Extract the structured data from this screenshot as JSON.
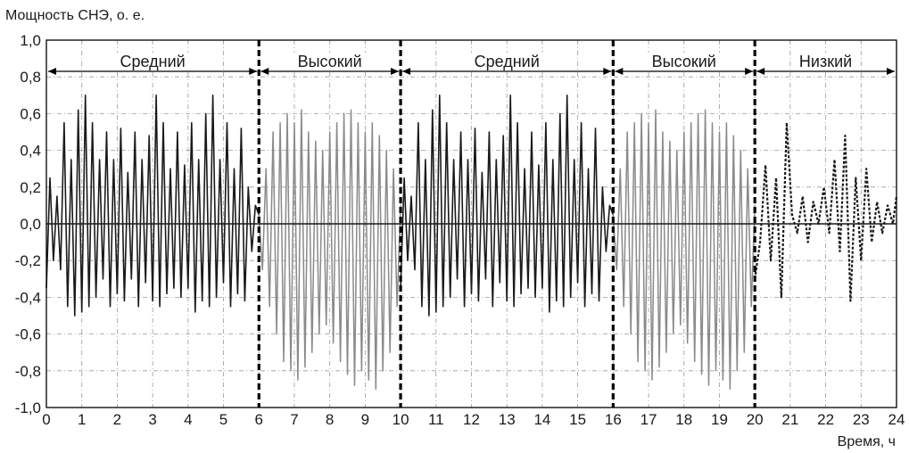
{
  "chart_data": {
    "type": "line",
    "title": "",
    "ylabel": "Мощность СНЭ, о. е.",
    "xlabel": "Время, ч",
    "xlim": [
      0,
      24
    ],
    "ylim": [
      -1.0,
      1.0
    ],
    "grid": true,
    "x_ticks": [
      0,
      1,
      2,
      3,
      4,
      5,
      6,
      7,
      8,
      9,
      10,
      11,
      12,
      13,
      14,
      15,
      16,
      17,
      18,
      19,
      20,
      21,
      22,
      23,
      24
    ],
    "y_ticks": [
      {
        "value": 1.0,
        "label": "1,0"
      },
      {
        "value": 0.8,
        "label": "0,8"
      },
      {
        "value": 0.6,
        "label": "0,6"
      },
      {
        "value": 0.4,
        "label": "0,4"
      },
      {
        "value": 0.2,
        "label": "0,2"
      },
      {
        "value": 0.0,
        "label": "0,0"
      },
      {
        "value": -0.2,
        "label": "-0,2"
      },
      {
        "value": -0.4,
        "label": "-0,4"
      },
      {
        "value": -0.6,
        "label": "-0,6"
      },
      {
        "value": -0.8,
        "label": "-0,8"
      },
      {
        "value": -1.0,
        "label": "-1,0"
      }
    ],
    "dividers": [
      6,
      10,
      16,
      20
    ],
    "span_level": 0.83,
    "modes": [
      {
        "label": "Средний",
        "start": 0,
        "end": 6,
        "style": "black"
      },
      {
        "label": "Высокий",
        "start": 6,
        "end": 10,
        "style": "gray"
      },
      {
        "label": "Средний",
        "start": 10,
        "end": 16,
        "style": "black"
      },
      {
        "label": "Высокий",
        "start": 16,
        "end": 20,
        "style": "gray"
      },
      {
        "label": "Низкий",
        "start": 20,
        "end": 24,
        "style": "dotted"
      }
    ],
    "series": [
      {
        "x": [
          0,
          0.1,
          0.2,
          0.3,
          0.4,
          0.5,
          0.6,
          0.7,
          0.8,
          0.9,
          1.0,
          1.1,
          1.2,
          1.3,
          1.4,
          1.5,
          1.6,
          1.7,
          1.8,
          1.9,
          2.0,
          2.1,
          2.2,
          2.3,
          2.4,
          2.5,
          2.6,
          2.7,
          2.8,
          2.9,
          3.0,
          3.1,
          3.2,
          3.3,
          3.4,
          3.5,
          3.6,
          3.7,
          3.8,
          3.9,
          4.0,
          4.1,
          4.2,
          4.3,
          4.4,
          4.5,
          4.6,
          4.7,
          4.8,
          4.9,
          5.0,
          5.1,
          5.2,
          5.3,
          5.4,
          5.5,
          5.6,
          5.7,
          5.8,
          5.9,
          6.0
        ],
        "y": [
          -0.35,
          0.25,
          -0.2,
          0.15,
          -0.25,
          0.55,
          -0.45,
          0.35,
          -0.5,
          0.62,
          -0.48,
          0.7,
          -0.45,
          0.55,
          -0.4,
          0.35,
          -0.3,
          0.5,
          -0.45,
          0.35,
          -0.38,
          0.52,
          -0.42,
          0.28,
          -0.3,
          0.5,
          -0.45,
          0.35,
          -0.32,
          0.48,
          -0.42,
          0.7,
          -0.45,
          0.55,
          -0.38,
          0.3,
          -0.35,
          0.5,
          -0.4,
          0.32,
          -0.35,
          0.55,
          -0.48,
          0.35,
          -0.42,
          0.6,
          -0.45,
          0.7,
          -0.4,
          0.35,
          -0.32,
          0.55,
          -0.45,
          0.3,
          -0.38,
          0.52,
          -0.42,
          0.2,
          -0.15,
          0.1,
          0.05
        ]
      },
      {
        "x": [
          6.0,
          6.1,
          6.2,
          6.3,
          6.4,
          6.5,
          6.6,
          6.7,
          6.8,
          6.9,
          7.0,
          7.1,
          7.2,
          7.3,
          7.4,
          7.5,
          7.6,
          7.7,
          7.8,
          7.9,
          8.0,
          8.1,
          8.2,
          8.3,
          8.4,
          8.5,
          8.6,
          8.7,
          8.8,
          8.9,
          9.0,
          9.1,
          9.2,
          9.3,
          9.4,
          9.5,
          9.6,
          9.7,
          9.8,
          9.9,
          10.0
        ],
        "y": [
          0.05,
          -0.25,
          0.3,
          -0.45,
          0.5,
          -0.6,
          0.55,
          -0.75,
          0.6,
          -0.8,
          0.55,
          -0.85,
          0.62,
          -0.78,
          0.5,
          -0.7,
          0.45,
          -0.6,
          0.4,
          -0.55,
          0.5,
          -0.65,
          0.55,
          -0.75,
          0.6,
          -0.82,
          0.62,
          -0.88,
          0.55,
          -0.8,
          0.5,
          -0.85,
          0.55,
          -0.9,
          0.48,
          -0.8,
          0.4,
          -0.7,
          0.3,
          -0.45,
          0.1
        ]
      },
      {
        "x": [
          10.0,
          10.1,
          10.2,
          10.3,
          10.4,
          10.5,
          10.6,
          10.7,
          10.8,
          10.9,
          11.0,
          11.1,
          11.2,
          11.3,
          11.4,
          11.5,
          11.6,
          11.7,
          11.8,
          11.9,
          12.0,
          12.1,
          12.2,
          12.3,
          12.4,
          12.5,
          12.6,
          12.7,
          12.8,
          12.9,
          13.0,
          13.1,
          13.2,
          13.3,
          13.4,
          13.5,
          13.6,
          13.7,
          13.8,
          13.9,
          14.0,
          14.1,
          14.2,
          14.3,
          14.4,
          14.5,
          14.6,
          14.7,
          14.8,
          14.9,
          15.0,
          15.1,
          15.2,
          15.3,
          15.4,
          15.5,
          15.6,
          15.7,
          15.8,
          15.9,
          16.0
        ],
        "y": [
          -0.35,
          0.25,
          -0.2,
          0.15,
          -0.25,
          0.55,
          -0.45,
          0.35,
          -0.5,
          0.62,
          -0.48,
          0.7,
          -0.45,
          0.55,
          -0.4,
          0.35,
          -0.3,
          0.5,
          -0.45,
          0.35,
          -0.38,
          0.52,
          -0.42,
          0.28,
          -0.3,
          0.5,
          -0.45,
          0.35,
          -0.32,
          0.48,
          -0.42,
          0.7,
          -0.45,
          0.55,
          -0.38,
          0.3,
          -0.35,
          0.5,
          -0.4,
          0.32,
          -0.35,
          0.55,
          -0.48,
          0.35,
          -0.42,
          0.6,
          -0.45,
          0.7,
          -0.4,
          0.35,
          -0.32,
          0.55,
          -0.45,
          0.3,
          -0.38,
          0.52,
          -0.42,
          0.2,
          -0.15,
          0.1,
          0.05
        ]
      },
      {
        "x": [
          16.0,
          16.1,
          16.2,
          16.3,
          16.4,
          16.5,
          16.6,
          16.7,
          16.8,
          16.9,
          17.0,
          17.1,
          17.2,
          17.3,
          17.4,
          17.5,
          17.6,
          17.7,
          17.8,
          17.9,
          18.0,
          18.1,
          18.2,
          18.3,
          18.4,
          18.5,
          18.6,
          18.7,
          18.8,
          18.9,
          19.0,
          19.1,
          19.2,
          19.3,
          19.4,
          19.5,
          19.6,
          19.7,
          19.8,
          19.9,
          20.0
        ],
        "y": [
          0.05,
          -0.25,
          0.3,
          -0.45,
          0.5,
          -0.6,
          0.55,
          -0.75,
          0.6,
          -0.8,
          0.55,
          -0.85,
          0.62,
          -0.78,
          0.5,
          -0.7,
          0.45,
          -0.6,
          0.4,
          -0.55,
          0.5,
          -0.65,
          0.55,
          -0.75,
          0.6,
          -0.82,
          0.62,
          -0.88,
          0.55,
          -0.8,
          0.5,
          -0.85,
          0.55,
          -0.9,
          0.48,
          -0.8,
          0.4,
          -0.7,
          0.3,
          -0.45,
          0.1
        ]
      },
      {
        "x": [
          20.0,
          20.15,
          20.3,
          20.45,
          20.6,
          20.75,
          20.9,
          21.05,
          21.2,
          21.35,
          21.5,
          21.65,
          21.8,
          21.95,
          22.1,
          22.25,
          22.4,
          22.55,
          22.7,
          22.85,
          23.0,
          23.15,
          23.3,
          23.45,
          23.6,
          23.75,
          23.9,
          24.0
        ],
        "y": [
          -0.3,
          -0.1,
          0.32,
          -0.2,
          0.25,
          -0.4,
          0.55,
          0.05,
          -0.05,
          0.15,
          -0.1,
          0.12,
          0.0,
          0.2,
          -0.05,
          0.35,
          -0.15,
          0.48,
          -0.42,
          0.25,
          -0.2,
          0.3,
          -0.1,
          0.12,
          -0.05,
          0.1,
          0.0,
          0.15
        ]
      }
    ]
  }
}
